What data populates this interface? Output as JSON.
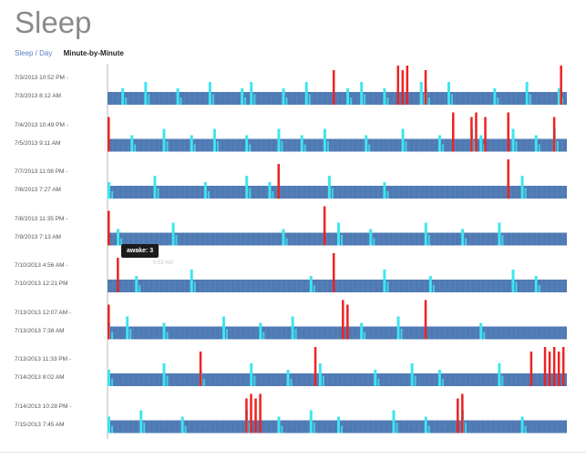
{
  "page": {
    "title": "Sleep"
  },
  "nav": {
    "day_label": "Sleep / Day",
    "minute_label": "Minute-by-Minute"
  },
  "tooltip": {
    "label": "awake: 3",
    "ghost": "0:53 AM"
  },
  "colors": {
    "asleep": "#4f7ab3",
    "restless": "#3fe5f0",
    "awake": "#ee2222",
    "axis": "#b8b8b8"
  },
  "chart_data": {
    "type": "table",
    "title": "",
    "nights": [
      {
        "start": "7/3/2013 10:52 PM -",
        "end": "7/3/2013 8:12 AM",
        "restless": [
          0.03,
          0.08,
          0.15,
          0.22,
          0.29,
          0.31,
          0.38,
          0.43,
          0.52,
          0.55,
          0.6,
          0.68,
          0.69,
          0.74,
          0.84,
          0.91,
          0.98
        ],
        "awake": [
          0.49,
          0.63,
          0.64,
          0.65,
          0.69,
          0.985
        ]
      },
      {
        "start": "7/4/2013 10:49 PM -",
        "end": "7/5/2013 9:11 AM",
        "restless": [
          0.05,
          0.12,
          0.18,
          0.23,
          0.3,
          0.37,
          0.42,
          0.47,
          0.56,
          0.64,
          0.72,
          0.79,
          0.81,
          0.88,
          0.93,
          0.97
        ],
        "awake": [
          0.0,
          0.75,
          0.79,
          0.8,
          0.82,
          0.87,
          0.97
        ]
      },
      {
        "start": "7/7/2013 11:08 PM -",
        "end": "7/8/2013 7:27 AM",
        "restless": [
          0.0,
          0.1,
          0.21,
          0.3,
          0.35,
          0.48,
          0.6,
          0.9
        ],
        "awake": [
          0.37,
          0.87
        ]
      },
      {
        "start": "7/8/2013 11:35 PM -",
        "end": "7/9/2013 7:13 AM",
        "restless": [
          0.02,
          0.14,
          0.38,
          0.5,
          0.57,
          0.69,
          0.77,
          0.85
        ],
        "awake": [
          0.0,
          0.47
        ]
      },
      {
        "start": "7/10/2013 4:56 AM -",
        "end": "7/10/2013 12:21 PM",
        "restless": [
          0.06,
          0.18,
          0.44,
          0.6,
          0.7,
          0.88,
          0.93
        ],
        "awake": [
          0.02,
          0.49
        ]
      },
      {
        "start": "7/13/2013 12:07 AM -",
        "end": "7/13/2013 7:38 AM",
        "restless": [
          0.0,
          0.04,
          0.12,
          0.25,
          0.33,
          0.4,
          0.55,
          0.63,
          0.81
        ],
        "awake": [
          0.0,
          0.51,
          0.52,
          0.69
        ]
      },
      {
        "start": "7/13/2013 11:33 PM -",
        "end": "7/14/2013 8:02 AM",
        "restless": [
          0.0,
          0.12,
          0.2,
          0.31,
          0.39,
          0.46,
          0.58,
          0.66,
          0.72,
          0.85
        ],
        "awake": [
          0.2,
          0.45,
          0.92,
          0.95,
          0.96,
          0.97,
          0.98,
          0.99
        ]
      },
      {
        "start": "7/14/2013 10:28 PM -",
        "end": "7/15/2013 7:45 AM",
        "restless": [
          0.0,
          0.07,
          0.16,
          0.3,
          0.37,
          0.44,
          0.5,
          0.62,
          0.69,
          0.77,
          0.9
        ],
        "awake": [
          0.3,
          0.31,
          0.32,
          0.33,
          0.76,
          0.77
        ]
      }
    ]
  }
}
